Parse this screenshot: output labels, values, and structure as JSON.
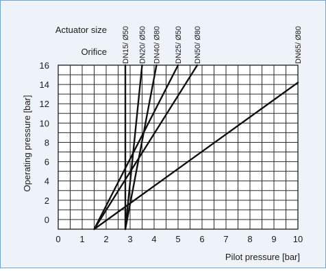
{
  "chart_data": {
    "type": "line",
    "header": {
      "actuator_label": "Actuator size",
      "orifice_label": "Orifice"
    },
    "xlabel": "Pilot pressure [bar]",
    "ylabel": "Operating pressure [bar]",
    "xlim": [
      0,
      10
    ],
    "ylim": [
      -1,
      16
    ],
    "x_ticks": [
      "0",
      "1",
      "2",
      "3",
      "4",
      "5",
      "6",
      "7",
      "8",
      "9",
      "10"
    ],
    "y_ticks": [
      "0",
      "2",
      "4",
      "6",
      "8",
      "10",
      "12",
      "14",
      "16"
    ],
    "grid": true,
    "series": [
      {
        "name": "DN15/ Ø50",
        "x": [
          2.8,
          2.8
        ],
        "y": [
          -1,
          16
        ]
      },
      {
        "name": "DN20/ Ø50",
        "x": [
          2.8,
          3.5
        ],
        "y": [
          -1,
          16
        ]
      },
      {
        "name": "DN40/ Ø80",
        "x": [
          2.8,
          4.1
        ],
        "y": [
          -1,
          16
        ]
      },
      {
        "name": "DN25/ Ø50",
        "x": [
          1.5,
          5.0
        ],
        "y": [
          -1,
          16
        ]
      },
      {
        "name": "DN50/ Ø80",
        "x": [
          1.5,
          5.8
        ],
        "y": [
          -1,
          16
        ]
      },
      {
        "name": "DN65/ Ø80",
        "x": [
          1.5,
          10.0
        ],
        "y": [
          -1,
          14.2
        ]
      }
    ]
  }
}
